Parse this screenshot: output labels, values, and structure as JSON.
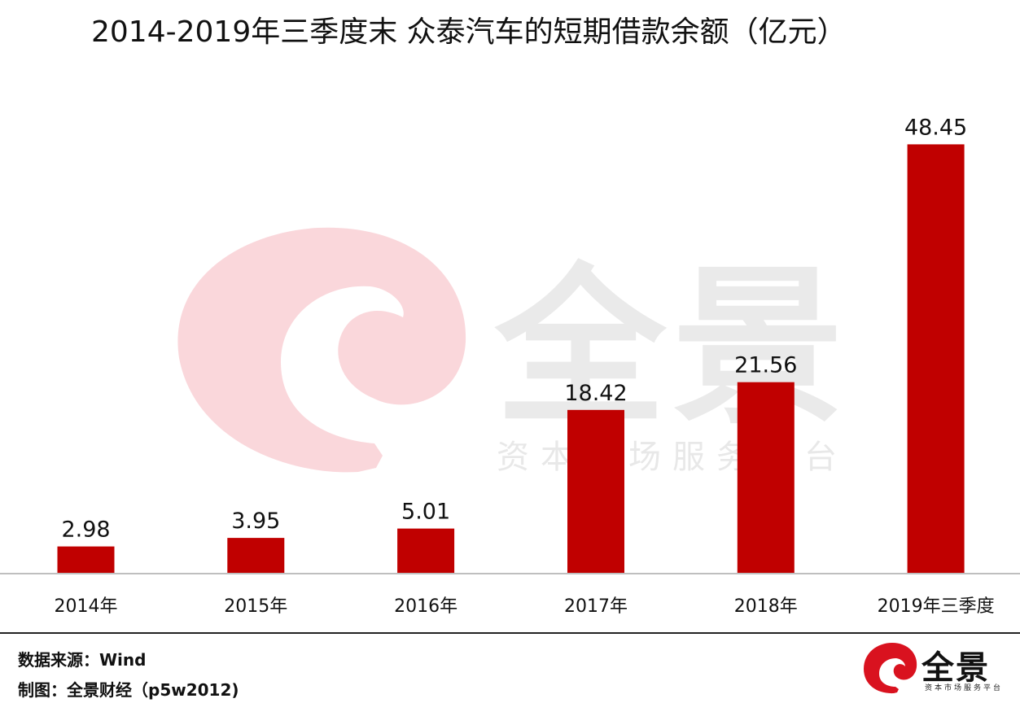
{
  "chart_data": {
    "type": "bar",
    "title": "2014-2019年三季度末 众泰汽车的短期借款余额（亿元）",
    "categories": [
      "2014年",
      "2015年",
      "2016年",
      "2017年",
      "2018年",
      "2019年三季度"
    ],
    "values": [
      2.98,
      3.95,
      5.01,
      18.42,
      21.56,
      48.45
    ],
    "value_labels": [
      "2.98",
      "3.95",
      "5.01",
      "18.42",
      "21.56",
      "48.45"
    ],
    "xlabel": "",
    "ylabel": "",
    "ylim": [
      0,
      53
    ],
    "grid": false,
    "legend": "none",
    "bar_color": "#c00000"
  },
  "watermark": {
    "brand": "全景",
    "subtitle": "资本市场服务平台",
    "logo_color": "#f5b7bd",
    "text_color": "#e3e3e3"
  },
  "footer": {
    "source_label": "数据来源：",
    "source_value": "Wind",
    "credit_label": "制图：",
    "credit_value": "全景财经（p5w2012)"
  },
  "footer_logo": {
    "brand": "全景",
    "subtitle": "资本市场服务平台",
    "color": "#d9121f"
  }
}
